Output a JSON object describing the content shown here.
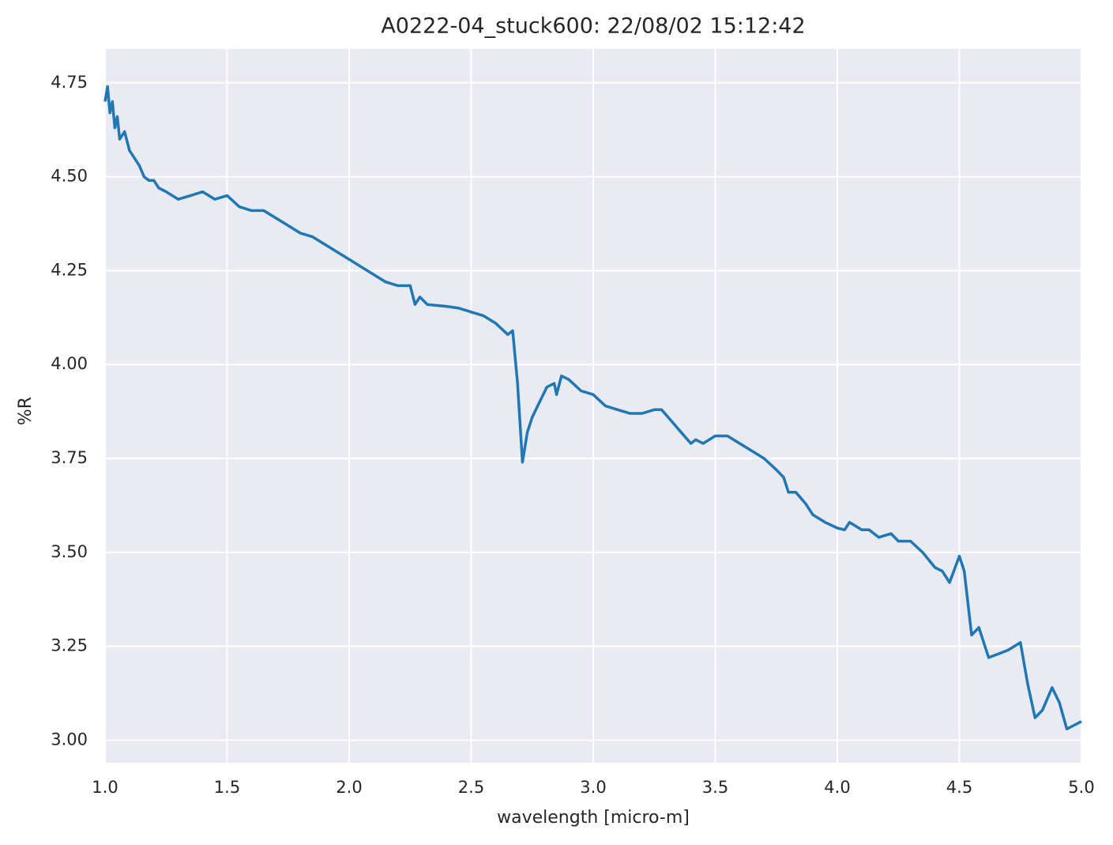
{
  "chart_data": {
    "type": "line",
    "title": "A0222-04_stuck600:  22/08/02 15:12:42",
    "x_label": "wavelength [micro-m]",
    "y_label": "%R",
    "color": "#1f77b4",
    "grid": true,
    "x": [
      1.0,
      1.01,
      1.02,
      1.03,
      1.04,
      1.05,
      1.06,
      1.08,
      1.1,
      1.12,
      1.14,
      1.16,
      1.18,
      1.2,
      1.22,
      1.25,
      1.3,
      1.35,
      1.4,
      1.45,
      1.5,
      1.55,
      1.6,
      1.65,
      1.7,
      1.75,
      1.8,
      1.85,
      1.9,
      1.95,
      2.0,
      2.05,
      2.1,
      2.15,
      2.2,
      2.25,
      2.27,
      2.29,
      2.32,
      2.4,
      2.45,
      2.5,
      2.55,
      2.6,
      2.65,
      2.67,
      2.69,
      2.71,
      2.73,
      2.75,
      2.78,
      2.81,
      2.84,
      2.85,
      2.87,
      2.9,
      2.95,
      3.0,
      3.05,
      3.1,
      3.15,
      3.2,
      3.25,
      3.28,
      3.32,
      3.36,
      3.4,
      3.42,
      3.45,
      3.5,
      3.55,
      3.6,
      3.65,
      3.7,
      3.75,
      3.78,
      3.8,
      3.83,
      3.87,
      3.9,
      3.95,
      4.0,
      4.03,
      4.05,
      4.1,
      4.13,
      4.17,
      4.22,
      4.25,
      4.3,
      4.35,
      4.4,
      4.43,
      4.46,
      4.5,
      4.52,
      4.55,
      4.58,
      4.62,
      4.66,
      4.7,
      4.75,
      4.78,
      4.81,
      4.84,
      4.88,
      4.91,
      4.94,
      4.97,
      5.0
    ],
    "values": [
      4.7,
      4.74,
      4.67,
      4.7,
      4.63,
      4.66,
      4.6,
      4.62,
      4.57,
      4.55,
      4.53,
      4.5,
      4.49,
      4.49,
      4.47,
      4.46,
      4.44,
      4.45,
      4.46,
      4.44,
      4.45,
      4.42,
      4.41,
      4.41,
      4.39,
      4.37,
      4.35,
      4.34,
      4.32,
      4.3,
      4.28,
      4.26,
      4.24,
      4.22,
      4.21,
      4.21,
      4.16,
      4.18,
      4.16,
      4.155,
      4.15,
      4.14,
      4.13,
      4.11,
      4.08,
      4.09,
      3.95,
      3.74,
      3.82,
      3.86,
      3.9,
      3.94,
      3.95,
      3.92,
      3.97,
      3.96,
      3.93,
      3.92,
      3.89,
      3.88,
      3.87,
      3.87,
      3.88,
      3.88,
      3.85,
      3.82,
      3.79,
      3.8,
      3.79,
      3.81,
      3.81,
      3.79,
      3.77,
      3.75,
      3.72,
      3.7,
      3.66,
      3.66,
      3.63,
      3.6,
      3.58,
      3.565,
      3.56,
      3.58,
      3.56,
      3.56,
      3.54,
      3.55,
      3.53,
      3.53,
      3.5,
      3.46,
      3.45,
      3.42,
      3.49,
      3.45,
      3.28,
      3.3,
      3.22,
      3.23,
      3.24,
      3.26,
      3.15,
      3.06,
      3.08,
      3.14,
      3.1,
      3.03,
      3.04,
      3.05
    ],
    "xlim": [
      1.0,
      5.0
    ],
    "ylim": [
      2.94,
      4.84
    ],
    "xticks": [
      {
        "value": 1.0,
        "label": "1.0"
      },
      1.5,
      {
        "value": 2.0,
        "label": "2.0"
      },
      2.5,
      {
        "value": 3.0,
        "label": "3.0"
      },
      3.5,
      {
        "value": 4.0,
        "label": "4.0"
      },
      4.5,
      {
        "value": 5.0,
        "label": "5.0"
      }
    ],
    "yticks": [
      {
        "value": 3.0,
        "label": "3.00"
      },
      3.25,
      {
        "value": 3.5,
        "label": "3.50"
      },
      3.75,
      {
        "value": 4.0,
        "label": "4.00"
      },
      4.25,
      {
        "value": 4.5,
        "label": "4.50"
      },
      4.75
    ]
  }
}
